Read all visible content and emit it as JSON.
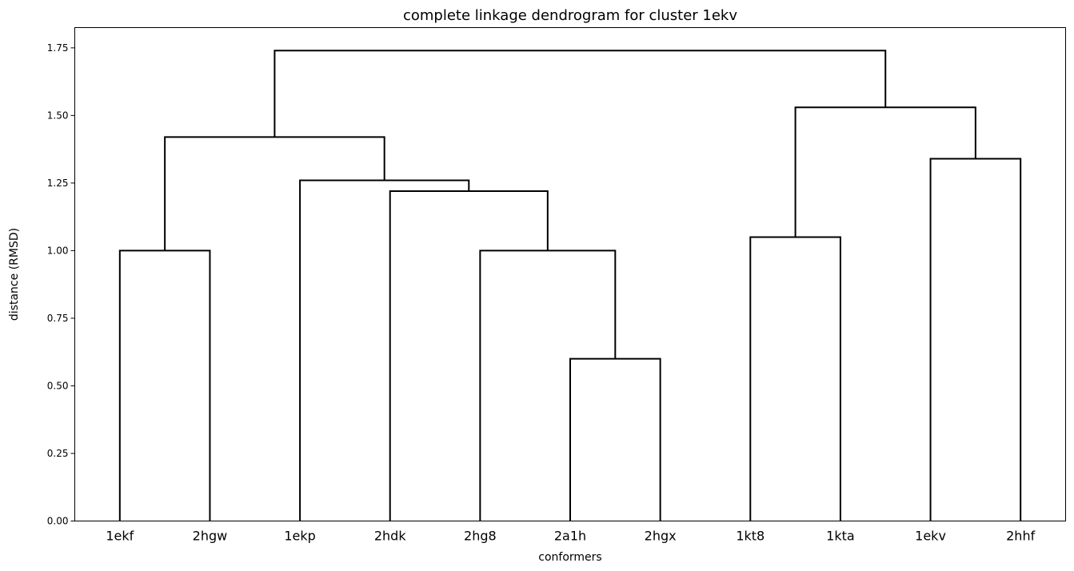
{
  "chart_data": {
    "type": "dendrogram",
    "title": "complete linkage dendrogram for cluster 1ekv",
    "xlabel": "conformers",
    "ylabel": "distance (RMSD)",
    "ylim": [
      0,
      1.825
    ],
    "yticks": [
      "0.00",
      "0.25",
      "0.50",
      "0.75",
      "1.00",
      "1.25",
      "1.50",
      "1.75"
    ],
    "ytick_values": [
      0,
      0.25,
      0.5,
      0.75,
      1.0,
      1.25,
      1.5,
      1.75
    ],
    "leaves": [
      "1ekf",
      "2hgw",
      "1ekp",
      "2hdk",
      "2hg8",
      "2a1h",
      "2hgx",
      "1kt8",
      "1kta",
      "1ekv",
      "2hhf"
    ],
    "merges": [
      {
        "left": "2a1h",
        "right": "2hgx",
        "height": 0.6
      },
      {
        "left": "1ekf",
        "right": "2hgw",
        "height": 1.0
      },
      {
        "left": "2hg8",
        "right": "(2a1h,2hgx)",
        "height": 1.0
      },
      {
        "left": "1kt8",
        "right": "1kta",
        "height": 1.05
      },
      {
        "left": "2hdk",
        "right": "(2hg8,(2a1h,2hgx))",
        "height": 1.22
      },
      {
        "left": "1ekp",
        "right": "(2hdk,...)",
        "height": 1.26
      },
      {
        "left": "1ekv",
        "right": "2hhf",
        "height": 1.34
      },
      {
        "left": "(1ekf,2hgw)",
        "right": "(1ekp,...)",
        "height": 1.42
      },
      {
        "left": "(1kt8,1kta)",
        "right": "(1ekv,2hhf)",
        "height": 1.53
      },
      {
        "left": "(1ekf,...)",
        "right": "(1kt8,...)",
        "height": 1.74
      }
    ],
    "link_color": "#000000",
    "grid": false
  }
}
